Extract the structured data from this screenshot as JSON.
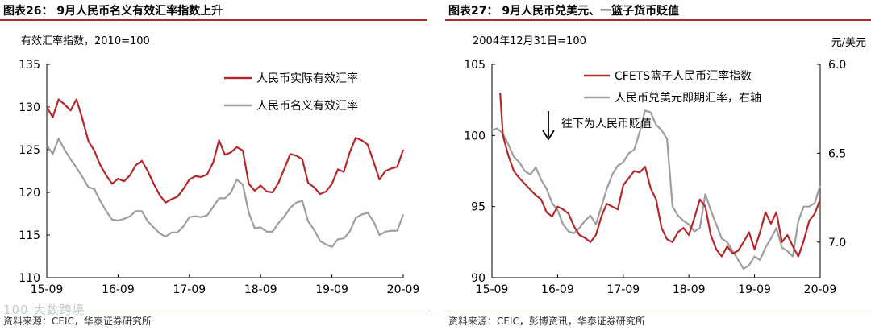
{
  "left": {
    "figure_title": "图表26： 9月人民币名义有效汇率指数上升",
    "source": "资料来源：CEIC，华泰证券研究所"
  },
  "right": {
    "figure_title": "图表27： 9月人民币兑美元、一篮子货币贬值",
    "source": "资料来源：CEIC，彭博资讯，华泰证券研究所"
  },
  "watermark": "100 大数跨境",
  "colors": {
    "red": "#b3282d",
    "gray": "#9e9e9e",
    "axis": "#000000"
  },
  "chart_data": [
    {
      "type": "line",
      "unit_label": "有效汇率指数，2010=100",
      "x_ticks": [
        "15-09",
        "16-09",
        "17-09",
        "18-09",
        "19-09",
        "20-09"
      ],
      "x_range": [
        0,
        60
      ],
      "ylim": [
        110,
        135
      ],
      "y_ticks": [
        110,
        115,
        120,
        125,
        130,
        135
      ],
      "legend_position": "top-right",
      "series": [
        {
          "name": "人民币实际有效汇率",
          "color": "#b3282d",
          "x": [
            0,
            1,
            2,
            3,
            4,
            5,
            6,
            7,
            8,
            9,
            10,
            11,
            12,
            13,
            14,
            15,
            16,
            17,
            18,
            19,
            20,
            21,
            22,
            23,
            24,
            25,
            26,
            27,
            28,
            29,
            30,
            31,
            32,
            33,
            34,
            35,
            36,
            37,
            38,
            39,
            40,
            41,
            42,
            43,
            44,
            45,
            46,
            47,
            48,
            49,
            50,
            51,
            52,
            53,
            54,
            55,
            56,
            57,
            58,
            59,
            60
          ],
          "y": [
            130.0,
            128.8,
            130.9,
            130.3,
            129.6,
            130.9,
            128.6,
            126.0,
            124.9,
            123.2,
            122.0,
            121.0,
            121.6,
            121.3,
            122.0,
            123.2,
            123.7,
            122.5,
            121.0,
            119.7,
            118.8,
            119.2,
            119.5,
            120.4,
            121.5,
            121.9,
            121.8,
            122.1,
            123.5,
            126.1,
            124.4,
            124.7,
            125.3,
            124.9,
            121.0,
            120.2,
            120.8,
            120.1,
            120.0,
            121.1,
            122.8,
            124.5,
            124.3,
            123.9,
            121.1,
            120.6,
            119.8,
            120.1,
            121.0,
            122.7,
            122.4,
            124.7,
            126.4,
            126.1,
            125.6,
            123.6,
            121.5,
            122.5,
            122.8,
            123.0,
            125.0
          ]
        },
        {
          "name": "人民币名义有效汇率",
          "color": "#9e9e9e",
          "x": [
            0,
            1,
            2,
            3,
            4,
            5,
            6,
            7,
            8,
            9,
            10,
            11,
            12,
            13,
            14,
            15,
            16,
            17,
            18,
            19,
            20,
            21,
            22,
            23,
            24,
            25,
            26,
            27,
            28,
            29,
            30,
            31,
            32,
            33,
            34,
            35,
            36,
            37,
            38,
            39,
            40,
            41,
            42,
            43,
            44,
            45,
            46,
            47,
            48,
            49,
            50,
            51,
            52,
            53,
            54,
            55,
            56,
            57,
            58,
            59,
            60
          ],
          "y": [
            125.5,
            124.5,
            126.3,
            125.0,
            123.9,
            122.9,
            121.8,
            120.6,
            120.4,
            119.0,
            117.8,
            116.8,
            116.7,
            116.9,
            117.2,
            117.8,
            117.8,
            116.6,
            115.9,
            115.2,
            114.8,
            115.3,
            115.3,
            116.0,
            117.1,
            117.2,
            117.1,
            117.3,
            118.3,
            119.3,
            119.3,
            120.0,
            121.5,
            120.9,
            117.6,
            115.8,
            115.9,
            115.4,
            115.4,
            116.4,
            117.2,
            118.2,
            118.8,
            119.0,
            116.6,
            115.6,
            114.3,
            113.9,
            113.6,
            114.5,
            114.6,
            115.4,
            117.0,
            117.4,
            117.6,
            116.6,
            115.0,
            115.4,
            115.5,
            115.5,
            117.4
          ]
        }
      ]
    },
    {
      "type": "line",
      "unit_label": "2004年12月31日=100",
      "right_unit_label": "元/美元",
      "x_ticks": [
        "15-09",
        "16-09",
        "17-09",
        "18-09",
        "19-09",
        "20-09"
      ],
      "x_range": [
        0,
        60
      ],
      "ylim": [
        90,
        105
      ],
      "y_ticks": [
        90,
        95,
        100,
        105
      ],
      "y2lim": [
        6.0,
        7.2
      ],
      "y2_ticks": [
        "6.0",
        "6.5",
        "7.0"
      ],
      "y2_inverted": true,
      "legend_position": "top-right",
      "annotation": "往下为人民币贬值",
      "series": [
        {
          "name": "CFETS篮子人民币汇率指数",
          "color": "#b3282d",
          "axis": "left",
          "x": [
            1.5,
            2,
            3,
            4,
            5,
            6,
            7,
            8,
            9,
            10,
            11,
            12,
            13,
            14,
            15,
            16,
            17,
            18,
            19,
            20,
            21,
            22,
            23,
            24,
            25,
            26,
            27,
            28,
            29,
            30,
            31,
            32,
            33,
            34,
            35,
            36,
            37,
            38,
            39,
            40,
            41,
            42,
            43,
            44,
            45,
            46,
            47,
            48,
            49,
            50,
            51,
            52,
            53,
            54,
            55,
            56,
            57,
            58,
            59,
            60
          ],
          "y": [
            103.0,
            100.0,
            98.6,
            97.5,
            97.0,
            96.6,
            96.2,
            95.8,
            95.5,
            94.6,
            94.3,
            95.0,
            94.8,
            94.5,
            93.6,
            93.0,
            92.8,
            92.5,
            93.0,
            94.3,
            95.2,
            95.0,
            94.8,
            96.5,
            97.0,
            97.5,
            97.4,
            97.8,
            96.3,
            95.5,
            93.5,
            92.7,
            92.5,
            93.2,
            93.5,
            93.0,
            94.2,
            95.5,
            95.0,
            93.0,
            92.0,
            91.5,
            92.2,
            91.7,
            91.9,
            92.5,
            93.2,
            92.0,
            93.2,
            94.6,
            93.8,
            94.6,
            92.5,
            93.0,
            92.2,
            91.5,
            92.6,
            94.0,
            94.5,
            95.5
          ]
        },
        {
          "name": "人民币兑美元即期汇率，右轴",
          "color": "#9e9e9e",
          "axis": "right",
          "x": [
            0,
            1,
            2,
            3,
            4,
            5,
            6,
            7,
            8,
            9,
            10,
            11,
            12,
            13,
            14,
            15,
            16,
            17,
            18,
            19,
            20,
            21,
            22,
            23,
            24,
            25,
            26,
            27,
            28,
            29,
            30,
            31,
            32,
            33,
            34,
            35,
            36,
            37,
            38,
            39,
            40,
            41,
            42,
            43,
            44,
            45,
            46,
            47,
            48,
            49,
            50,
            51,
            52,
            53,
            54,
            55,
            56,
            57,
            58,
            59,
            60
          ],
          "y": [
            6.37,
            6.36,
            6.39,
            6.45,
            6.52,
            6.55,
            6.6,
            6.62,
            6.58,
            6.65,
            6.7,
            6.78,
            6.82,
            6.9,
            6.94,
            6.95,
            6.92,
            6.88,
            6.85,
            6.9,
            6.8,
            6.7,
            6.62,
            6.57,
            6.55,
            6.5,
            6.48,
            6.38,
            6.26,
            6.27,
            6.34,
            6.37,
            6.42,
            6.8,
            6.85,
            6.88,
            6.9,
            6.94,
            6.92,
            6.73,
            6.82,
            6.9,
            6.98,
            7.0,
            7.05,
            7.1,
            7.15,
            7.13,
            7.08,
            7.1,
            7.03,
            6.98,
            6.92,
            7.03,
            7.05,
            7.08,
            6.88,
            6.8,
            6.8,
            6.78,
            6.68
          ]
        }
      ]
    }
  ]
}
